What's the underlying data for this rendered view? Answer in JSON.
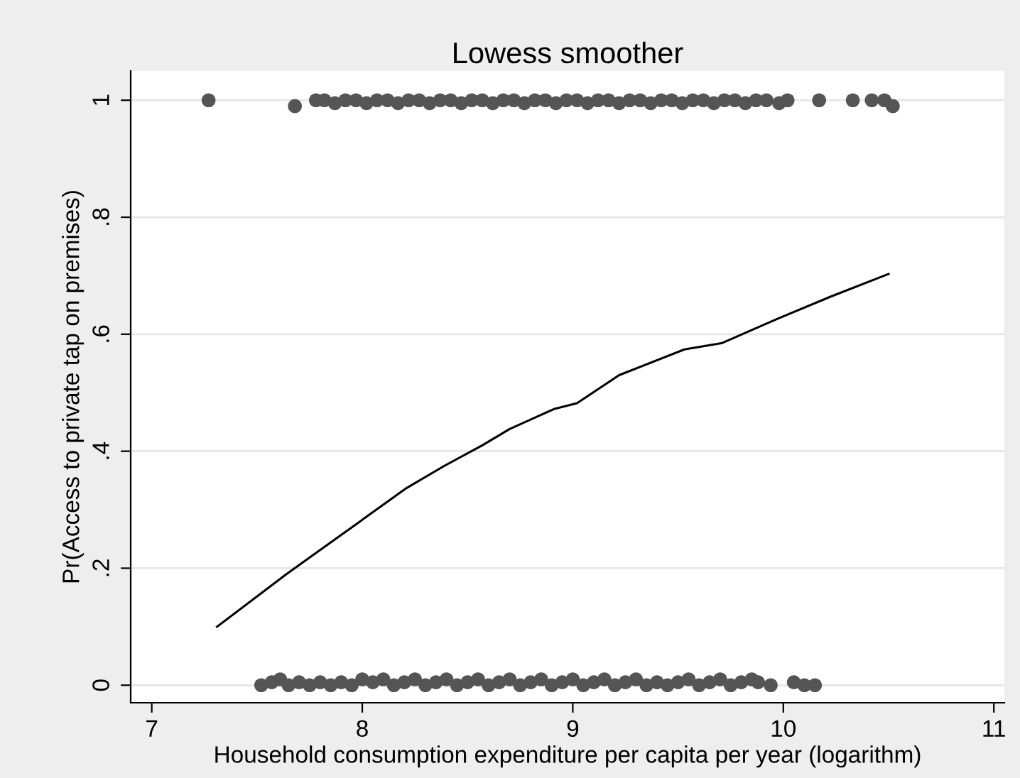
{
  "chart_data": {
    "type": "scatter",
    "title": "Lowess smoother",
    "xlabel": "Household consumption expenditure per capita per year (logarithm)",
    "ylabel": "Pr(Access to private tap on premises)",
    "xlim": [
      6.9,
      11.05
    ],
    "xticks": [
      7,
      8,
      9,
      10,
      11
    ],
    "ylim": [
      -0.03,
      1.05
    ],
    "yticks": [
      {
        "value": 0,
        "label": "0"
      },
      {
        "value": 0.2,
        "label": ".2"
      },
      {
        "value": 0.4,
        "label": ".4"
      },
      {
        "value": 0.6,
        "label": ".6"
      },
      {
        "value": 0.8,
        "label": ".8"
      },
      {
        "value": 1,
        "label": "1"
      }
    ],
    "grid": "y",
    "marker": "circle",
    "series": [
      {
        "color": "#555555",
        "x": [
          7.27,
          7.68,
          7.78,
          7.82,
          7.87,
          7.92,
          7.97,
          8.02,
          8.07,
          8.12,
          8.17,
          8.22,
          8.27,
          8.32,
          8.37,
          8.42,
          8.47,
          8.52,
          8.57,
          8.62,
          8.67,
          8.72,
          8.77,
          8.82,
          8.87,
          8.92,
          8.97,
          9.02,
          9.07,
          9.12,
          9.17,
          9.22,
          9.27,
          9.32,
          9.37,
          9.42,
          9.47,
          9.52,
          9.57,
          9.62,
          9.67,
          9.72,
          9.77,
          9.82,
          9.87,
          9.92,
          9.98,
          10.02,
          10.17,
          10.33,
          10.42,
          10.48,
          10.52
        ],
        "values": [
          1,
          0.99,
          1,
          1,
          0.995,
          1,
          1,
          0.995,
          1,
          1,
          0.995,
          1,
          1,
          0.995,
          1,
          1,
          0.995,
          1,
          1,
          0.995,
          1,
          1,
          0.995,
          1,
          1,
          0.995,
          1,
          1,
          0.995,
          1,
          1,
          0.995,
          1,
          1,
          0.995,
          1,
          1,
          0.995,
          1,
          1,
          0.995,
          1,
          1,
          0.995,
          1,
          1,
          0.995,
          1,
          1,
          1,
          1,
          1,
          0.99
        ]
      },
      {
        "color": "#555555",
        "x": [
          7.52,
          7.57,
          7.61,
          7.65,
          7.7,
          7.75,
          7.8,
          7.85,
          7.9,
          7.95,
          8.0,
          8.05,
          8.1,
          8.15,
          8.2,
          8.25,
          8.3,
          8.35,
          8.4,
          8.45,
          8.5,
          8.55,
          8.6,
          8.65,
          8.7,
          8.75,
          8.8,
          8.85,
          8.9,
          8.95,
          9.0,
          9.05,
          9.1,
          9.15,
          9.2,
          9.25,
          9.3,
          9.35,
          9.4,
          9.45,
          9.5,
          9.55,
          9.6,
          9.65,
          9.7,
          9.75,
          9.8,
          9.85,
          9.88,
          9.94,
          10.05,
          10.1,
          10.15
        ],
        "values": [
          0,
          0.005,
          0.01,
          0,
          0.005,
          0,
          0.005,
          0,
          0.005,
          0,
          0.01,
          0.005,
          0.01,
          0,
          0.005,
          0.01,
          0,
          0.005,
          0.01,
          0,
          0.005,
          0.01,
          0,
          0.005,
          0.01,
          0,
          0.005,
          0.01,
          0,
          0.005,
          0.01,
          0,
          0.005,
          0.01,
          0,
          0.005,
          0.01,
          0,
          0.005,
          0,
          0.005,
          0.01,
          0,
          0.005,
          0.01,
          0,
          0.005,
          0.01,
          0.005,
          0,
          0.005,
          0,
          0
        ]
      },
      {
        "type": "line",
        "color": "#000000",
        "marker": "none",
        "x": [
          7.31,
          7.64,
          7.97,
          8.21,
          8.39,
          8.57,
          8.7,
          8.91,
          9.02,
          9.22,
          9.53,
          9.71,
          9.97,
          10.23,
          10.5
        ],
        "values": [
          0.1,
          0.19,
          0.275,
          0.337,
          0.375,
          0.41,
          0.438,
          0.472,
          0.482,
          0.53,
          0.574,
          0.585,
          0.626,
          0.665,
          0.703
        ]
      }
    ]
  }
}
